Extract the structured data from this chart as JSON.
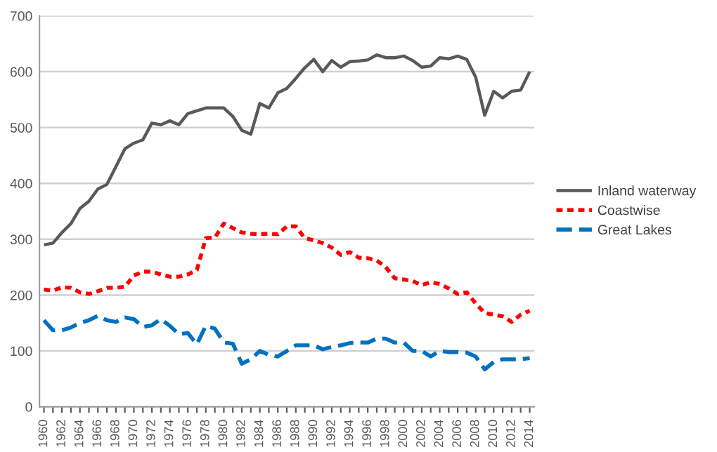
{
  "chart_data": {
    "type": "line",
    "x": [
      1960,
      1961,
      1962,
      1963,
      1964,
      1965,
      1966,
      1967,
      1968,
      1969,
      1970,
      1971,
      1972,
      1973,
      1974,
      1975,
      1976,
      1977,
      1978,
      1979,
      1980,
      1981,
      1982,
      1983,
      1984,
      1985,
      1986,
      1987,
      1988,
      1989,
      1990,
      1991,
      1992,
      1993,
      1994,
      1995,
      1996,
      1997,
      1998,
      1999,
      2000,
      2001,
      2002,
      2003,
      2004,
      2005,
      2006,
      2007,
      2008,
      2009,
      2010,
      2011,
      2012,
      2013,
      2014
    ],
    "series": [
      {
        "name": "Inland waterway",
        "color": "#595959",
        "line_style": "solid",
        "values": [
          290,
          293,
          312,
          328,
          355,
          368,
          390,
          398,
          430,
          462,
          472,
          478,
          508,
          505,
          512,
          505,
          525,
          530,
          535,
          535,
          535,
          520,
          495,
          488,
          543,
          535,
          562,
          570,
          588,
          607,
          622,
          600,
          620,
          608,
          618,
          619,
          621,
          630,
          625,
          625,
          628,
          620,
          608,
          610,
          625,
          623,
          628,
          622,
          590,
          522,
          565,
          553,
          565,
          567,
          600
        ]
      },
      {
        "name": "Coastwise",
        "color": "#ff0000",
        "line_style": "dotted",
        "values": [
          210,
          208,
          214,
          213,
          205,
          202,
          207,
          213,
          213,
          215,
          235,
          242,
          242,
          237,
          233,
          233,
          237,
          245,
          302,
          303,
          328,
          320,
          312,
          310,
          309,
          310,
          309,
          323,
          323,
          302,
          298,
          293,
          285,
          272,
          277,
          267,
          266,
          262,
          250,
          230,
          228,
          225,
          218,
          223,
          220,
          212,
          202,
          205,
          185,
          168,
          165,
          162,
          152,
          165,
          172
        ]
      },
      {
        "name": "Great Lakes",
        "color": "#0070c0",
        "line_style": "dashed",
        "values": [
          155,
          137,
          137,
          142,
          150,
          155,
          163,
          155,
          152,
          160,
          157,
          143,
          146,
          157,
          145,
          130,
          132,
          112,
          145,
          140,
          115,
          113,
          77,
          85,
          100,
          93,
          90,
          100,
          110,
          110,
          110,
          103,
          107,
          110,
          114,
          115,
          115,
          122,
          122,
          115,
          115,
          100,
          100,
          90,
          100,
          98,
          98,
          97,
          90,
          67,
          80,
          85,
          85,
          85,
          87
        ]
      }
    ],
    "xlim": [
      1959.5,
      2014.5
    ],
    "xticks": [
      1960,
      {
        "value": 1961,
        "label": null
      },
      1962,
      {
        "value": 1963,
        "label": null
      },
      1964,
      {
        "value": 1965,
        "label": null
      },
      1966,
      {
        "value": 1967,
        "label": null
      },
      1968,
      {
        "value": 1969,
        "label": null
      },
      1970,
      {
        "value": 1971,
        "label": null
      },
      1972,
      {
        "value": 1973,
        "label": null
      },
      1974,
      {
        "value": 1975,
        "label": null
      },
      1976,
      {
        "value": 1977,
        "label": null
      },
      1978,
      {
        "value": 1979,
        "label": null
      },
      1980,
      {
        "value": 1981,
        "label": null
      },
      1982,
      {
        "value": 1983,
        "label": null
      },
      1984,
      {
        "value": 1985,
        "label": null
      },
      1986,
      {
        "value": 1987,
        "label": null
      },
      1988,
      {
        "value": 1989,
        "label": null
      },
      1990,
      {
        "value": 1991,
        "label": null
      },
      1992,
      {
        "value": 1993,
        "label": null
      },
      1994,
      {
        "value": 1995,
        "label": null
      },
      1996,
      {
        "value": 1997,
        "label": null
      },
      1998,
      {
        "value": 1999,
        "label": null
      },
      2000,
      {
        "value": 2001,
        "label": null
      },
      2002,
      {
        "value": 2003,
        "label": null
      },
      2004,
      {
        "value": 2005,
        "label": null
      },
      2006,
      {
        "value": 2007,
        "label": null
      },
      2008,
      {
        "value": 2009,
        "label": null
      },
      2010,
      {
        "value": 2011,
        "label": null
      },
      2012,
      {
        "value": 2013,
        "label": null
      },
      2014
    ],
    "ylim": [
      0,
      700
    ],
    "yticks": [
      0,
      100,
      200,
      300,
      400,
      500,
      600,
      700
    ],
    "grid": "y",
    "legend": "right",
    "marker": "none"
  }
}
